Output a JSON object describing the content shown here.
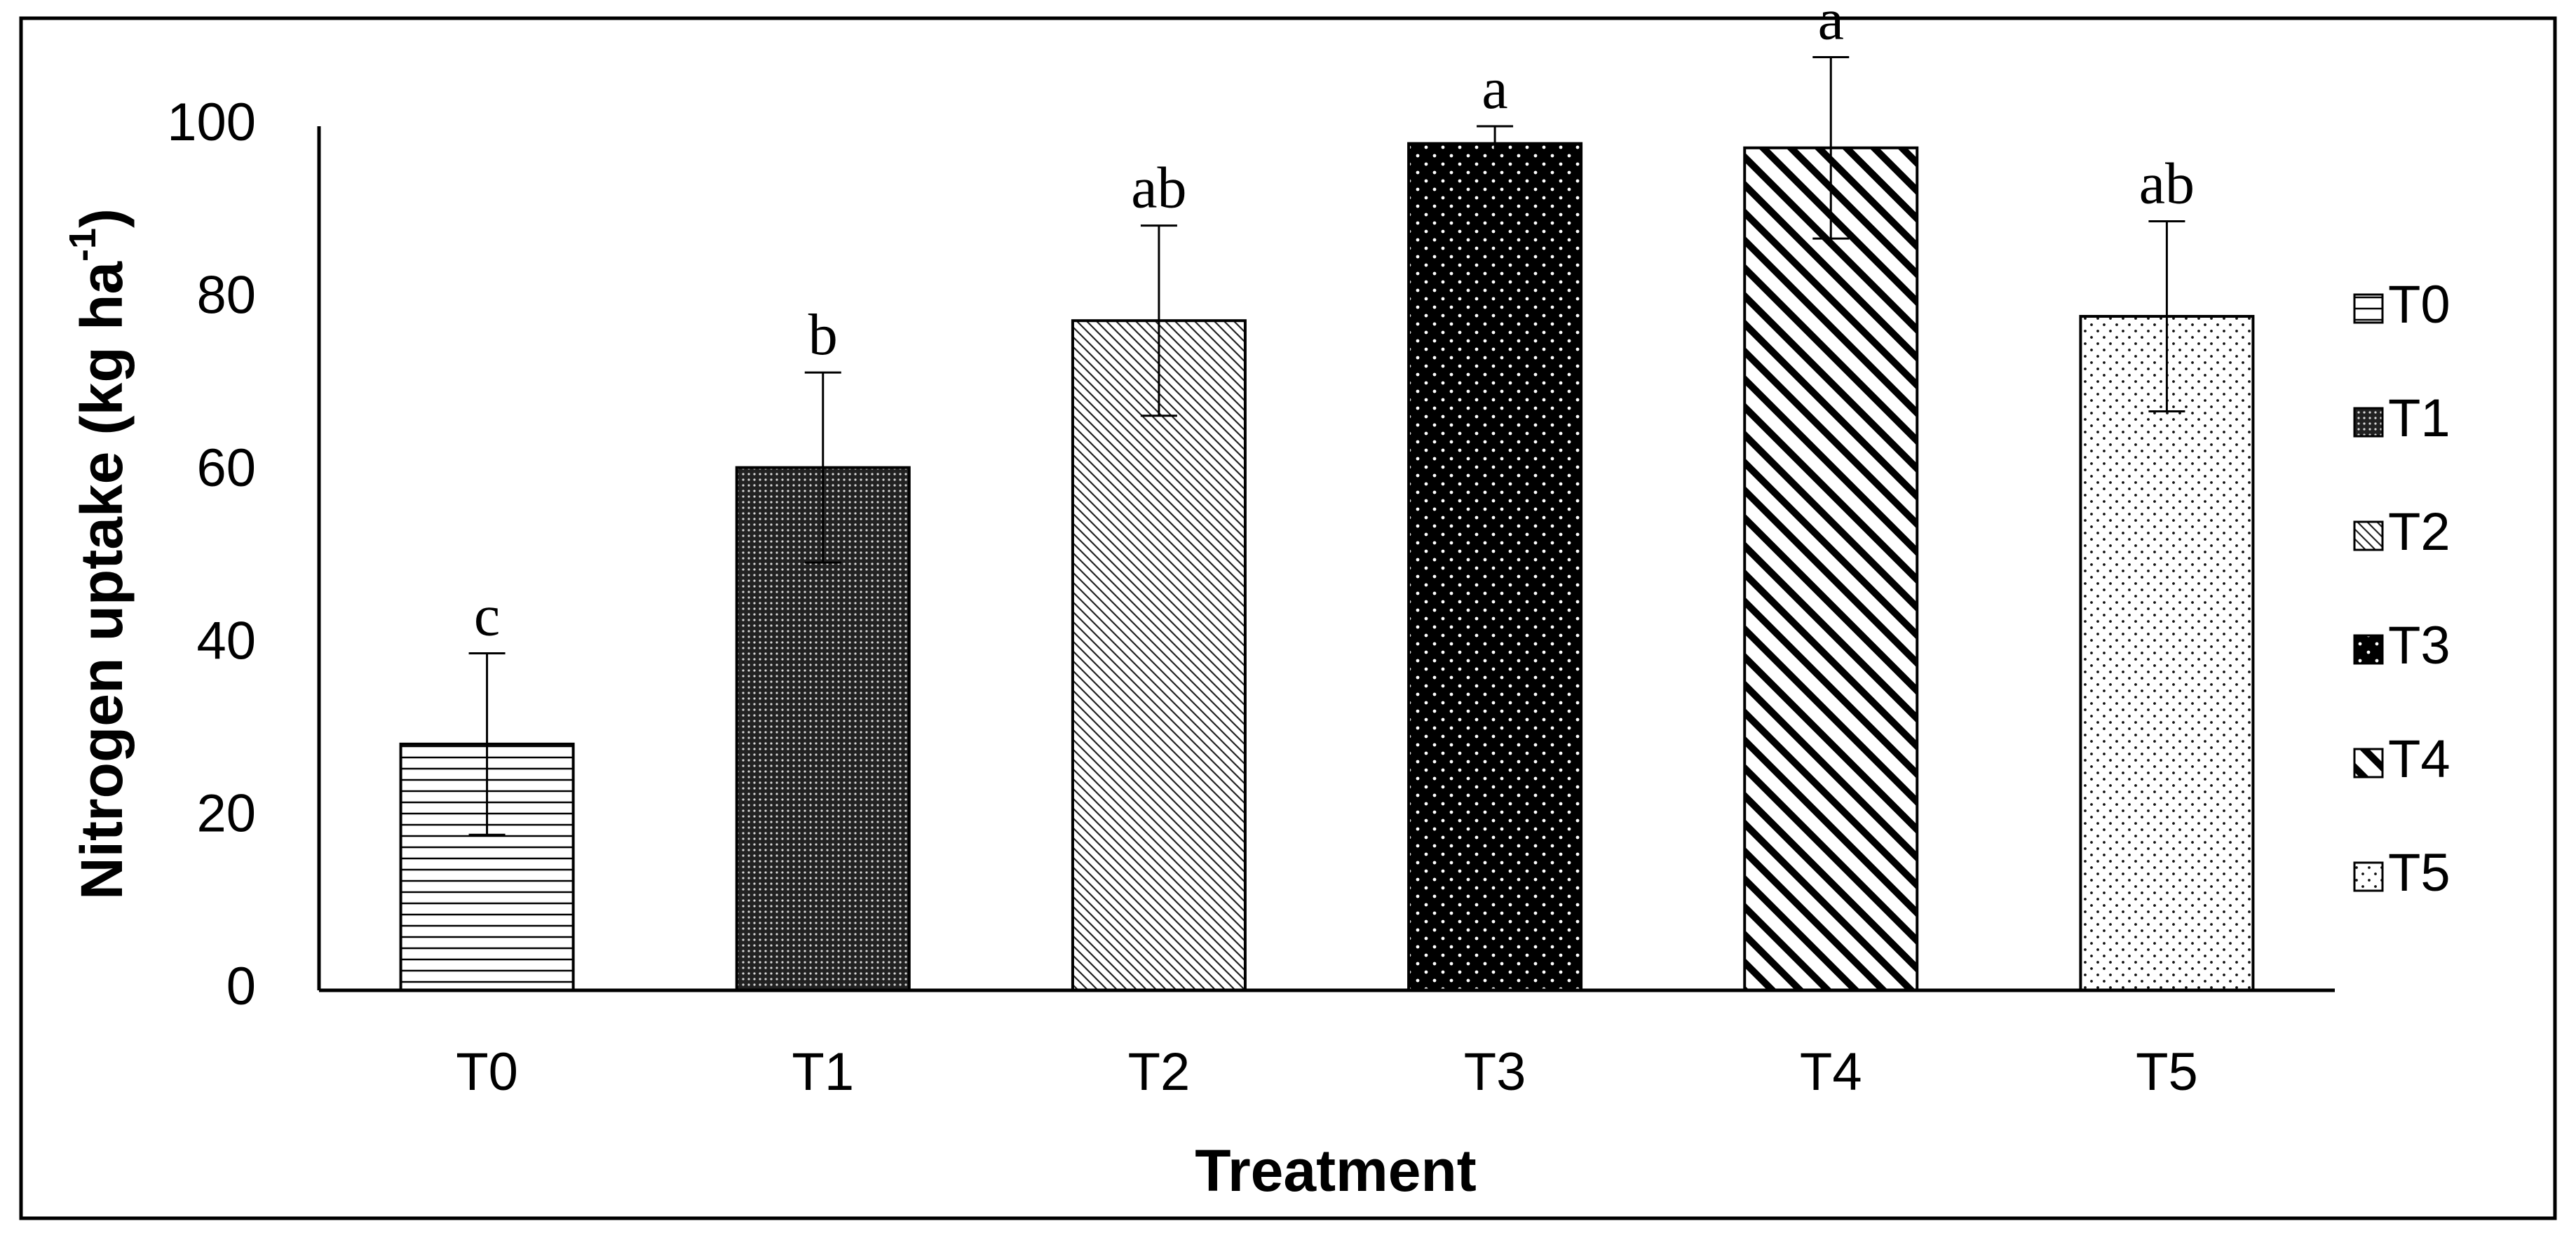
{
  "chart_data": {
    "type": "bar",
    "categories": [
      "T0",
      "T1",
      "T2",
      "T3",
      "T4",
      "T5"
    ],
    "values": [
      28.5,
      60.5,
      77.5,
      98.0,
      97.5,
      78.0
    ],
    "error": [
      10.5,
      11.0,
      11.0,
      2.0,
      10.5,
      11.0
    ],
    "significance": [
      "c",
      "b",
      "ab",
      "a",
      "a",
      "ab"
    ],
    "ylabel": "Nitrogen uptake (kg  ha",
    "ylabel_sup": "-1",
    "ylabel_close": ")",
    "xlabel": "Treatment",
    "ylim": [
      0,
      100
    ],
    "yticks": [
      "0",
      "20",
      "40",
      "60",
      "80",
      "100"
    ],
    "legend": [
      "T0",
      "T1",
      "T2",
      "T3",
      "T4",
      "T5"
    ],
    "legend_position": "right",
    "grid": false
  }
}
